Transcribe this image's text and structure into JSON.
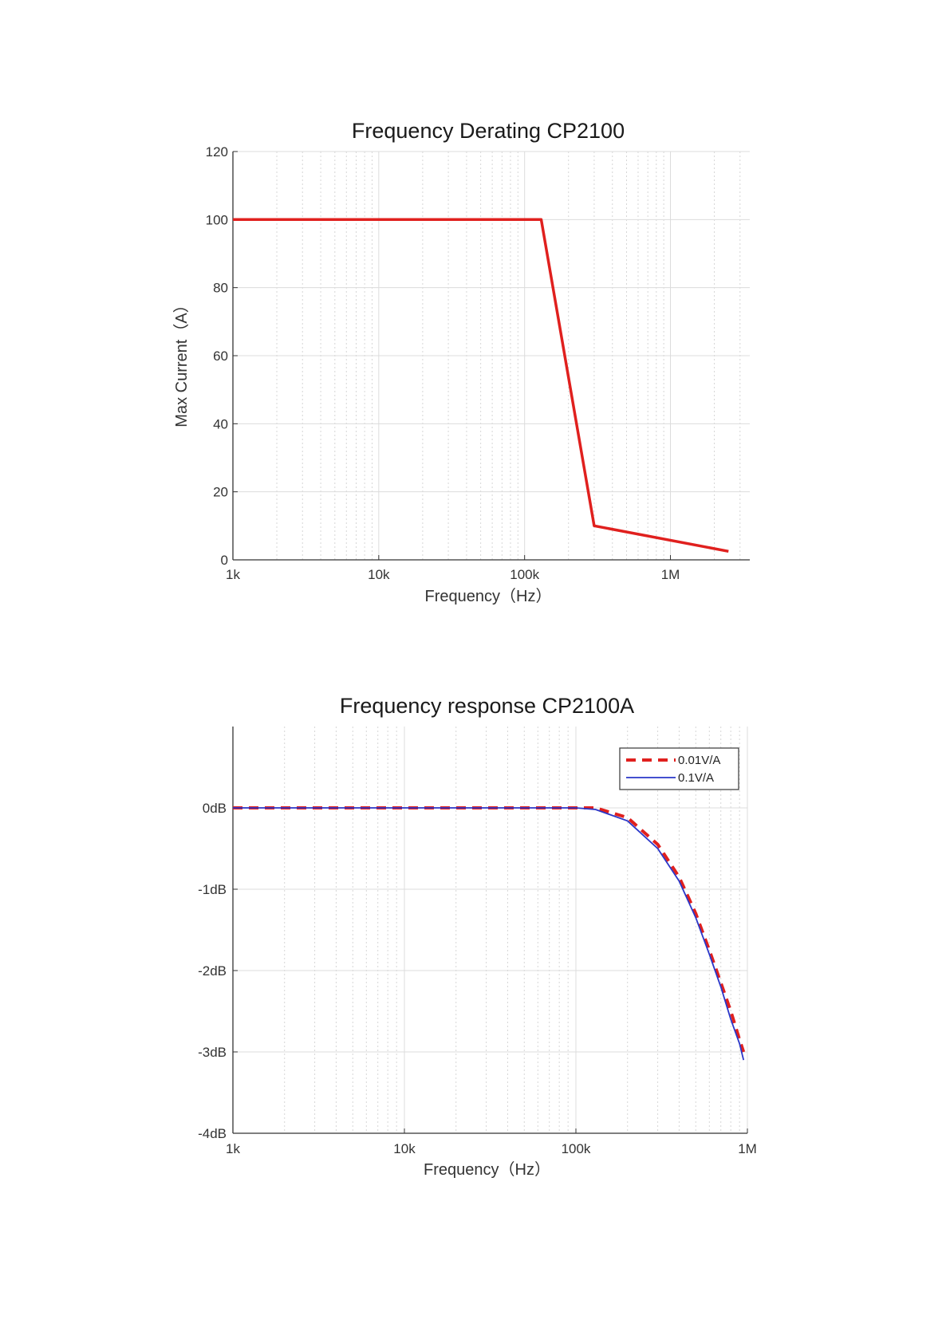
{
  "chart_data": [
    {
      "type": "line",
      "title": "Frequency Derating CP2100",
      "xlabel": "Frequency（Hz）",
      "ylabel": "Max Current（A）",
      "xscale": "log",
      "xlim": [
        1000,
        3500000
      ],
      "ylim": [
        0,
        120
      ],
      "x_ticks": [
        1000,
        10000,
        100000,
        1000000
      ],
      "x_tick_labels": [
        "1k",
        "10k",
        "100k",
        "1M"
      ],
      "y_ticks": [
        0,
        20,
        40,
        60,
        80,
        100,
        120
      ],
      "y_tick_labels": [
        "0",
        "20",
        "40",
        "60",
        "80",
        "100",
        "120"
      ],
      "grid": true,
      "series": [
        {
          "color": "#e0201e",
          "x": [
            1000,
            130000,
            300000,
            2500000
          ],
          "y": [
            100,
            100,
            10,
            2.5
          ]
        }
      ]
    },
    {
      "type": "line",
      "title": "Frequency response CP2100A",
      "xlabel": "Frequency（Hz）",
      "ylabel": "",
      "xscale": "log",
      "xlim": [
        1000,
        1000000
      ],
      "ylim": [
        -4,
        1
      ],
      "x_ticks": [
        1000,
        10000,
        100000,
        1000000
      ],
      "x_tick_labels": [
        "1k",
        "10k",
        "100k",
        "1M"
      ],
      "y_ticks": [
        -4,
        -3,
        -2,
        -1,
        0
      ],
      "y_tick_labels": [
        "-4dB",
        "-3dB",
        "-2dB",
        "-1dB",
        "0dB"
      ],
      "grid": true,
      "legend": "top-right",
      "series": [
        {
          "name": "0.01V/A",
          "color": "#e0201e",
          "style": "dashed",
          "x": [
            1000,
            10000,
            100000,
            130000,
            200000,
            300000,
            400000,
            500000,
            600000,
            700000,
            800000,
            900000,
            950000
          ],
          "y": [
            0,
            0,
            0,
            0,
            -0.12,
            -0.45,
            -0.85,
            -1.3,
            -1.75,
            -2.15,
            -2.5,
            -2.85,
            -3.0
          ]
        },
        {
          "name": "0.1V/A",
          "color": "#2a36c8",
          "style": "solid",
          "x": [
            1000,
            10000,
            100000,
            130000,
            200000,
            300000,
            400000,
            500000,
            600000,
            700000,
            800000,
            900000,
            950000
          ],
          "y": [
            0,
            0,
            0,
            -0.02,
            -0.16,
            -0.5,
            -0.9,
            -1.35,
            -1.8,
            -2.2,
            -2.6,
            -2.9,
            -3.1
          ]
        }
      ]
    }
  ]
}
